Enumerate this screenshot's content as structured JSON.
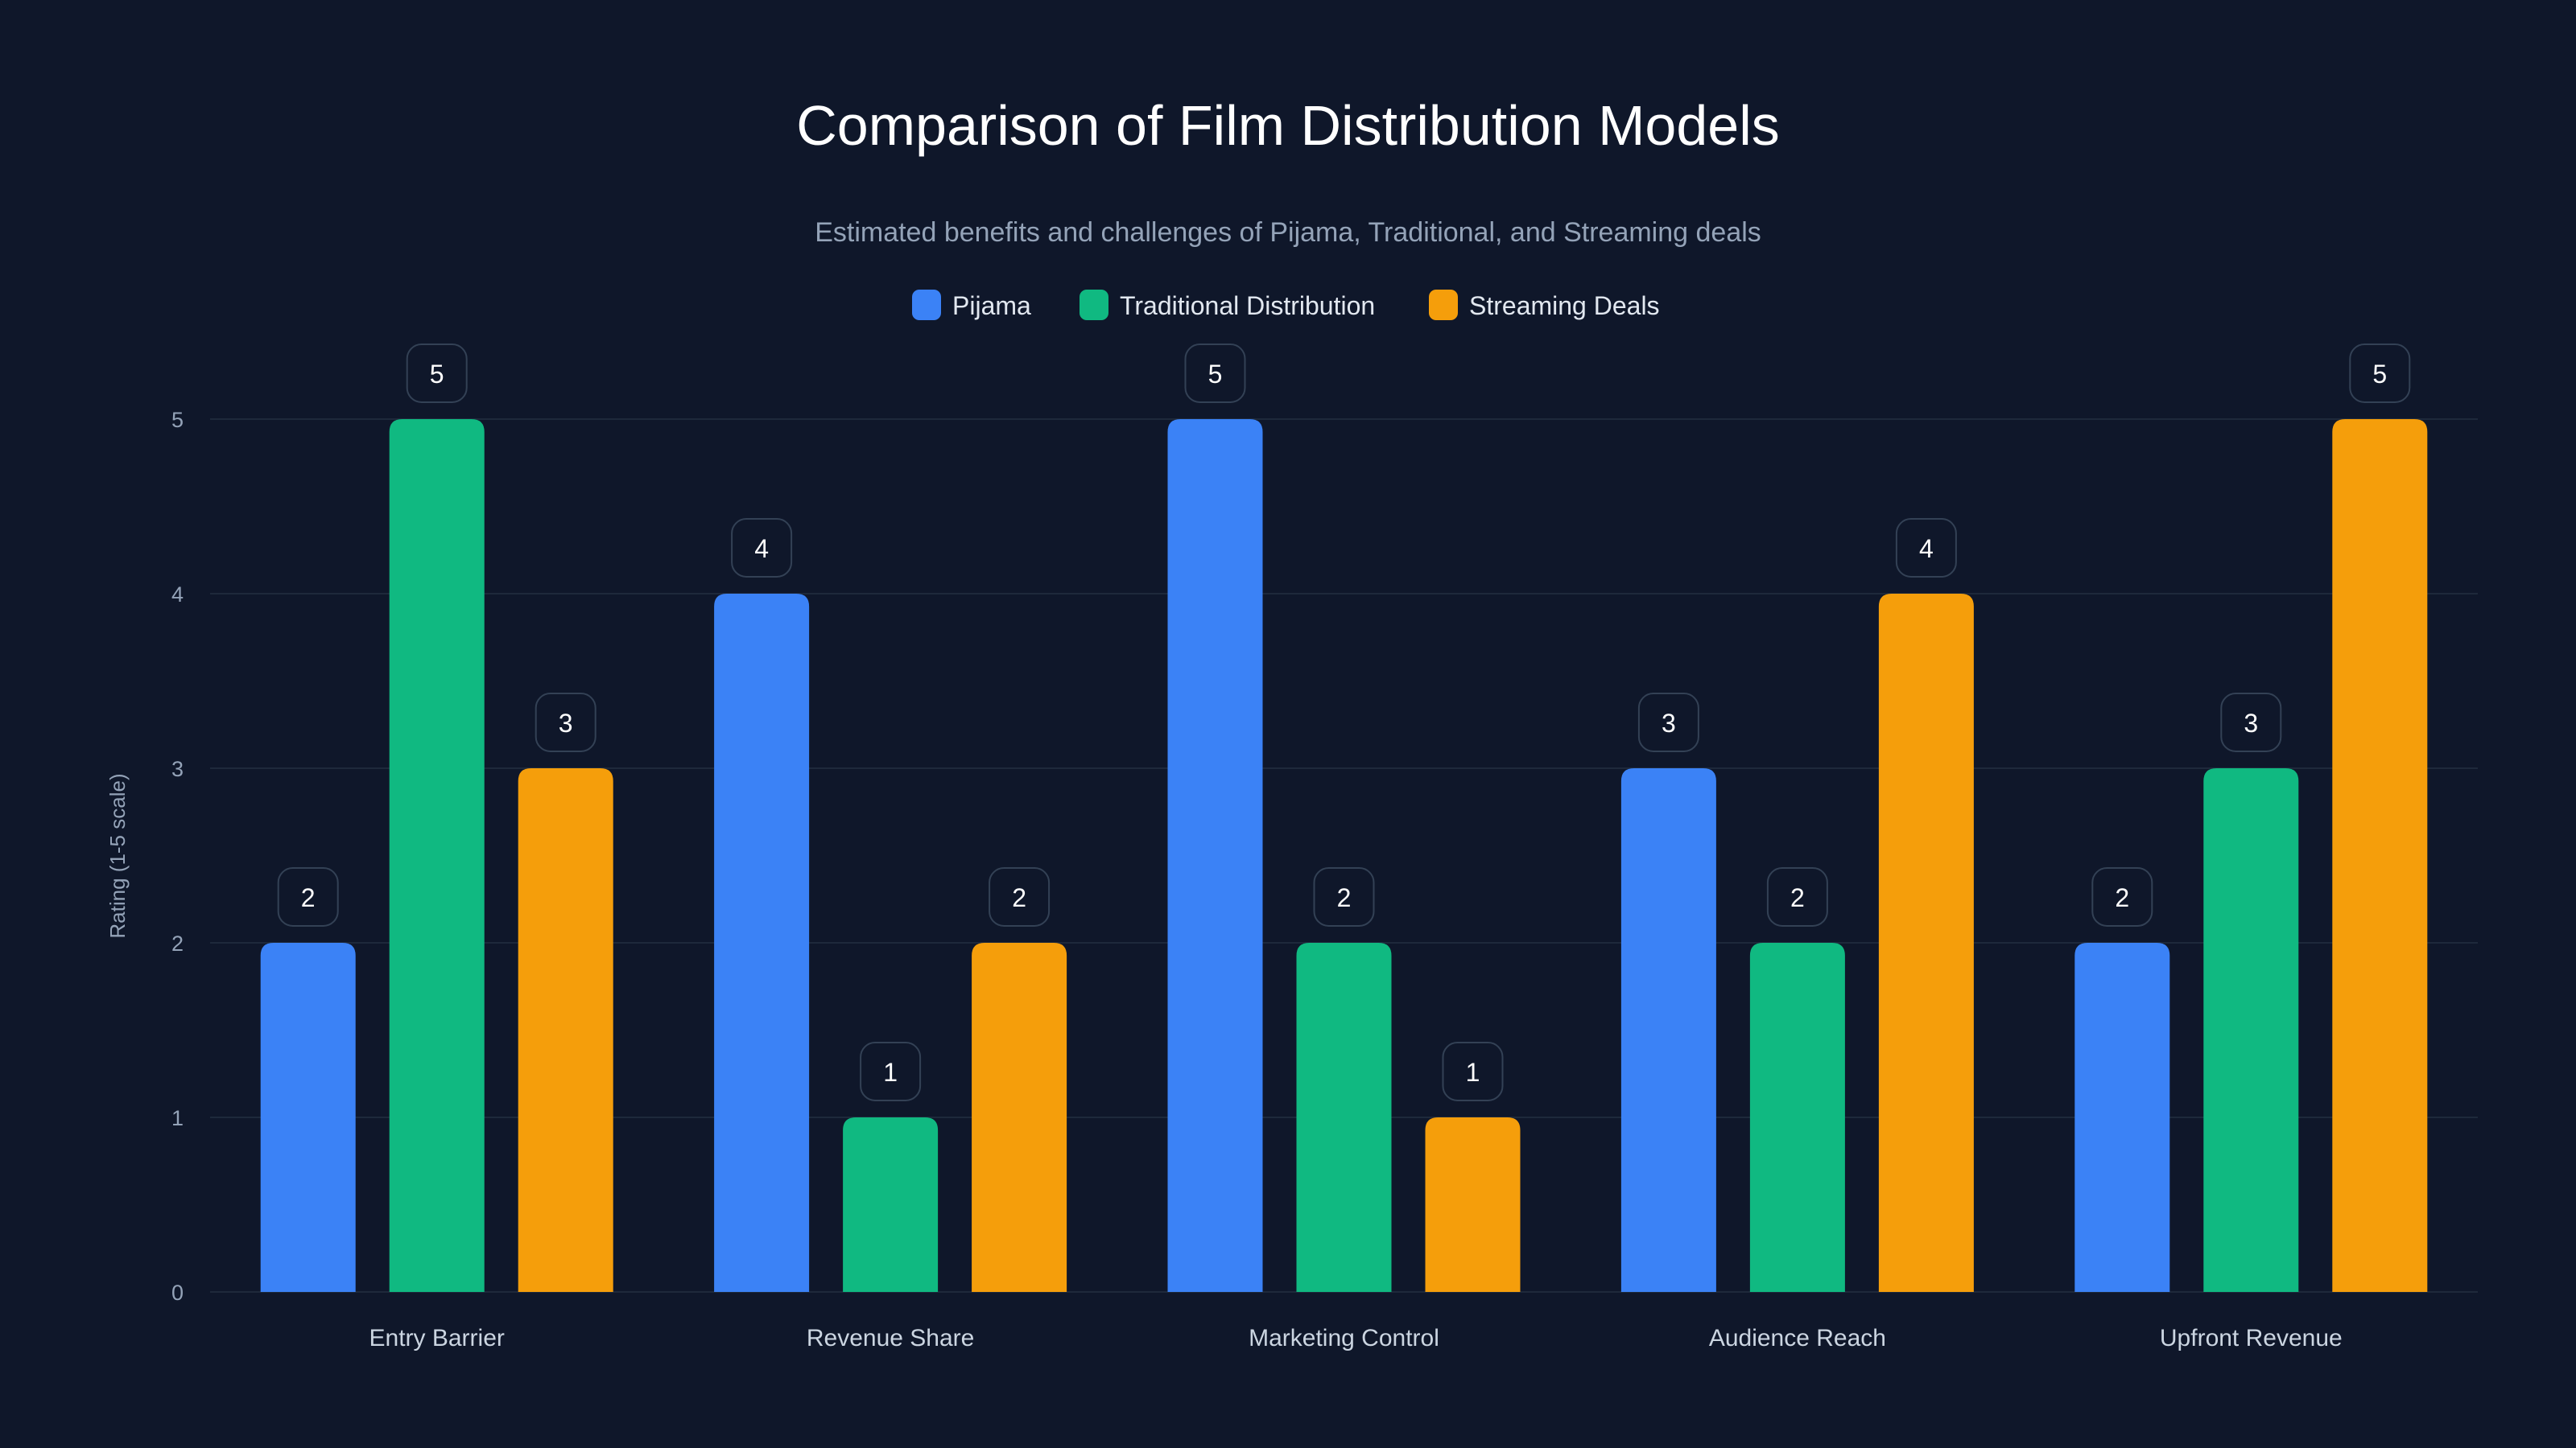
{
  "chart_data": {
    "type": "bar",
    "title": "Comparison of Film Distribution Models",
    "subtitle": "Estimated benefits and challenges of Pijama, Traditional, and Streaming deals",
    "xlabel": "",
    "ylabel": "Rating (1-5 scale)",
    "ylim": [
      0,
      5
    ],
    "yticks": [
      "0",
      "1",
      "2",
      "3",
      "4",
      "5"
    ],
    "grid": true,
    "legend_position": "top-center",
    "categories": [
      "Entry Barrier",
      "Revenue Share",
      "Marketing Control",
      "Audience Reach",
      "Upfront Revenue"
    ],
    "series": [
      {
        "name": "Pijama",
        "color": "#3b82f6",
        "values": [
          2,
          4,
          5,
          3,
          2
        ]
      },
      {
        "name": "Traditional Distribution",
        "color": "#10b981",
        "values": [
          5,
          1,
          2,
          2,
          3
        ]
      },
      {
        "name": "Streaming Deals",
        "color": "#f59e0b",
        "values": [
          3,
          2,
          1,
          4,
          5
        ]
      }
    ]
  }
}
